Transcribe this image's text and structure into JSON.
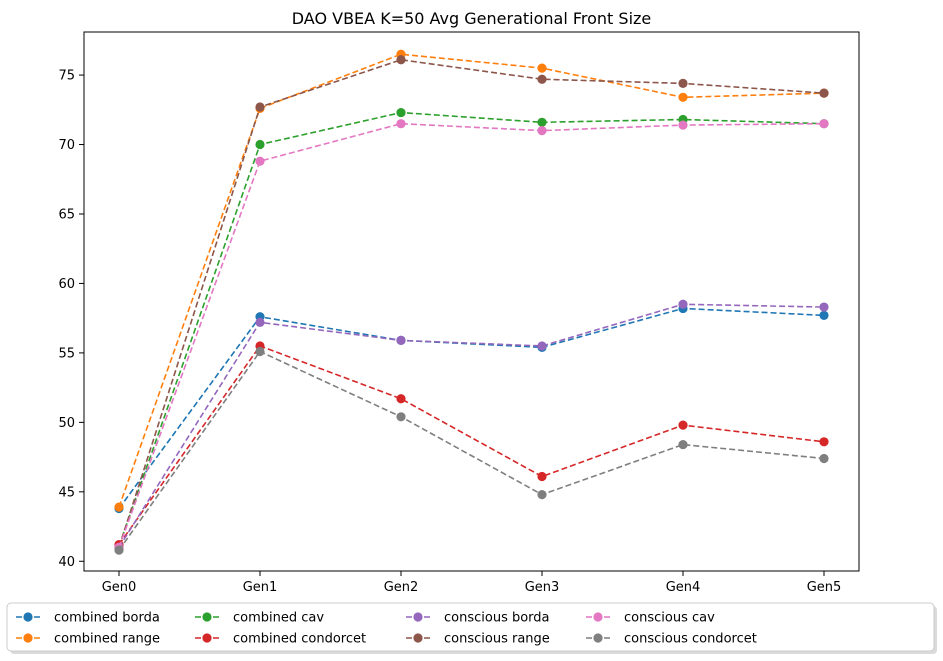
{
  "chart_data": {
    "type": "line",
    "title": "DAO VBEA K=50 Avg Generational Front Size",
    "xlabel": "",
    "ylabel": "",
    "categories": [
      "Gen0",
      "Gen1",
      "Gen2",
      "Gen3",
      "Gen4",
      "Gen5"
    ],
    "ylim": [
      39.3,
      78.1
    ],
    "yticks": [
      40,
      45,
      50,
      55,
      60,
      65,
      70,
      75
    ],
    "grid": false,
    "legend_position": "bottom-center",
    "line_style": "dashed",
    "series": [
      {
        "name": "combined borda",
        "color": "#1f77b4",
        "values": [
          43.8,
          57.6,
          55.9,
          55.4,
          58.2,
          57.7
        ]
      },
      {
        "name": "combined range",
        "color": "#ff7f0e",
        "values": [
          43.9,
          72.6,
          76.5,
          75.5,
          73.4,
          73.7
        ]
      },
      {
        "name": "combined cav",
        "color": "#2ca02c",
        "values": [
          41.1,
          70.0,
          72.3,
          71.6,
          71.8,
          71.5
        ]
      },
      {
        "name": "combined condorcet",
        "color": "#d62728",
        "values": [
          41.2,
          55.5,
          51.7,
          46.1,
          49.8,
          48.6
        ]
      },
      {
        "name": "conscious borda",
        "color": "#9467bd",
        "values": [
          41.0,
          57.2,
          55.9,
          55.5,
          58.5,
          58.3
        ]
      },
      {
        "name": "conscious range",
        "color": "#8c564b",
        "values": [
          41.0,
          72.7,
          76.1,
          74.7,
          74.4,
          73.7
        ]
      },
      {
        "name": "conscious cav",
        "color": "#e377c2",
        "values": [
          41.0,
          68.8,
          71.5,
          71.0,
          71.4,
          71.5
        ]
      },
      {
        "name": "conscious condorcet",
        "color": "#7f7f7f",
        "values": [
          40.8,
          55.1,
          50.4,
          44.8,
          48.4,
          47.4
        ]
      }
    ]
  }
}
